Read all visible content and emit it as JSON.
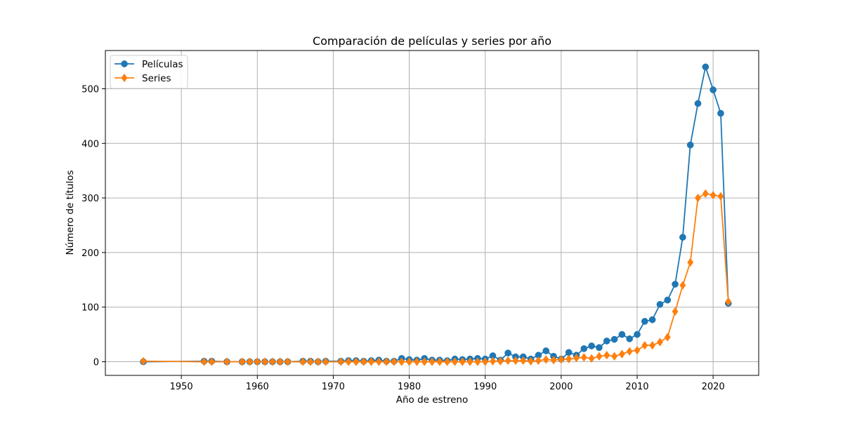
{
  "chart_data": {
    "type": "line",
    "title": "Comparación de películas y series por año",
    "xlabel": "Año de estreno",
    "ylabel": "Número de títulos",
    "xlim": [
      1940,
      2026
    ],
    "ylim": [
      -25,
      570
    ],
    "xticks": [
      1950,
      1960,
      1970,
      1980,
      1990,
      2000,
      2010,
      2020
    ],
    "yticks": [
      0,
      100,
      200,
      300,
      400,
      500
    ],
    "grid": true,
    "legend_position": "top-left",
    "series": [
      {
        "name": "Películas",
        "color": "#1f77b4",
        "marker": "circle",
        "points": [
          [
            1945,
            0
          ],
          [
            1953,
            1
          ],
          [
            1954,
            1
          ],
          [
            1956,
            0
          ],
          [
            1958,
            0
          ],
          [
            1959,
            0
          ],
          [
            1960,
            0
          ],
          [
            1961,
            0
          ],
          [
            1962,
            0
          ],
          [
            1963,
            0
          ],
          [
            1964,
            0
          ],
          [
            1966,
            1
          ],
          [
            1967,
            1
          ],
          [
            1968,
            0
          ],
          [
            1969,
            1
          ],
          [
            1971,
            1
          ],
          [
            1972,
            2
          ],
          [
            1973,
            2
          ],
          [
            1974,
            1
          ],
          [
            1975,
            2
          ],
          [
            1976,
            3
          ],
          [
            1977,
            1
          ],
          [
            1978,
            1
          ],
          [
            1979,
            6
          ],
          [
            1980,
            4
          ],
          [
            1981,
            3
          ],
          [
            1982,
            6
          ],
          [
            1983,
            3
          ],
          [
            1984,
            3
          ],
          [
            1985,
            2
          ],
          [
            1986,
            5
          ],
          [
            1987,
            4
          ],
          [
            1988,
            5
          ],
          [
            1989,
            6
          ],
          [
            1990,
            5
          ],
          [
            1991,
            11
          ],
          [
            1992,
            3
          ],
          [
            1993,
            16
          ],
          [
            1994,
            9
          ],
          [
            1995,
            9
          ],
          [
            1996,
            5
          ],
          [
            1997,
            12
          ],
          [
            1998,
            20
          ],
          [
            1999,
            10
          ],
          [
            2000,
            5
          ],
          [
            2001,
            17
          ],
          [
            2002,
            12
          ],
          [
            2003,
            24
          ],
          [
            2004,
            29
          ],
          [
            2005,
            26
          ],
          [
            2006,
            38
          ],
          [
            2007,
            41
          ],
          [
            2008,
            50
          ],
          [
            2009,
            42
          ],
          [
            2010,
            50
          ],
          [
            2011,
            74
          ],
          [
            2012,
            77
          ],
          [
            2013,
            105
          ],
          [
            2014,
            113
          ],
          [
            2015,
            142
          ],
          [
            2016,
            228
          ],
          [
            2017,
            397
          ],
          [
            2018,
            473
          ],
          [
            2019,
            540
          ],
          [
            2020,
            498
          ],
          [
            2021,
            455
          ],
          [
            2022,
            107
          ]
        ]
      },
      {
        "name": "Series",
        "color": "#ff7f0e",
        "marker": "diamond",
        "points": [
          [
            1945,
            1
          ],
          [
            1953,
            0
          ],
          [
            1954,
            0
          ],
          [
            1956,
            0
          ],
          [
            1958,
            0
          ],
          [
            1959,
            0
          ],
          [
            1960,
            0
          ],
          [
            1961,
            0
          ],
          [
            1962,
            0
          ],
          [
            1963,
            0
          ],
          [
            1964,
            0
          ],
          [
            1966,
            0
          ],
          [
            1967,
            0
          ],
          [
            1968,
            0
          ],
          [
            1969,
            0
          ],
          [
            1971,
            0
          ],
          [
            1972,
            0
          ],
          [
            1973,
            0
          ],
          [
            1974,
            0
          ],
          [
            1975,
            0
          ],
          [
            1976,
            0
          ],
          [
            1977,
            0
          ],
          [
            1978,
            0
          ],
          [
            1979,
            0
          ],
          [
            1980,
            0
          ],
          [
            1981,
            0
          ],
          [
            1982,
            0
          ],
          [
            1983,
            0
          ],
          [
            1984,
            0
          ],
          [
            1985,
            0
          ],
          [
            1986,
            0
          ],
          [
            1987,
            0
          ],
          [
            1988,
            0
          ],
          [
            1989,
            0
          ],
          [
            1990,
            0
          ],
          [
            1991,
            1
          ],
          [
            1992,
            1
          ],
          [
            1993,
            2
          ],
          [
            1994,
            2
          ],
          [
            1995,
            2
          ],
          [
            1996,
            1
          ],
          [
            1997,
            2
          ],
          [
            1998,
            4
          ],
          [
            1999,
            3
          ],
          [
            2000,
            4
          ],
          [
            2001,
            5
          ],
          [
            2002,
            7
          ],
          [
            2003,
            8
          ],
          [
            2004,
            6
          ],
          [
            2005,
            10
          ],
          [
            2006,
            12
          ],
          [
            2007,
            10
          ],
          [
            2008,
            14
          ],
          [
            2009,
            19
          ],
          [
            2010,
            21
          ],
          [
            2011,
            30
          ],
          [
            2012,
            30
          ],
          [
            2013,
            36
          ],
          [
            2014,
            45
          ],
          [
            2015,
            92
          ],
          [
            2016,
            140
          ],
          [
            2017,
            182
          ],
          [
            2018,
            300
          ],
          [
            2019,
            308
          ],
          [
            2020,
            305
          ],
          [
            2021,
            303
          ],
          [
            2022,
            110
          ]
        ]
      }
    ]
  }
}
